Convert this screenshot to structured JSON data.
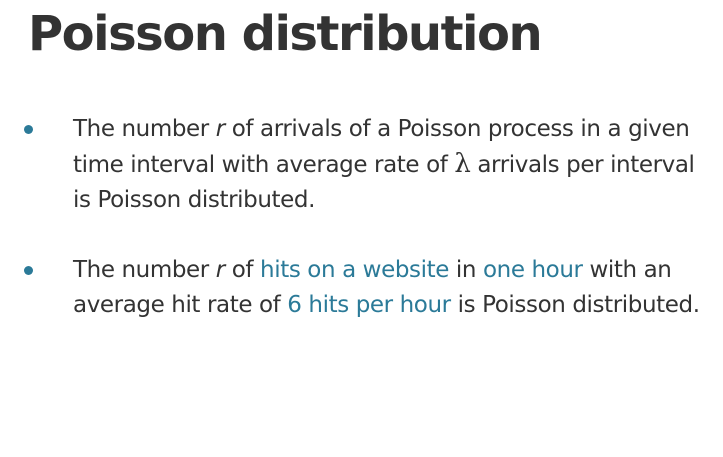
{
  "title": "Poisson distribution",
  "colors": {
    "accent": "#2b7a98",
    "text": "#333333"
  },
  "bullets": [
    {
      "p1": "The number ",
      "var": "r",
      "p2": " of arrivals of a Poisson process in a given time interval with average rate of ",
      "lambda": "λ",
      "p3": " arrivals per interval is Poisson distributed."
    },
    {
      "p1": "The number ",
      "var": "r",
      "p2": " of ",
      "h1": "hits on a website",
      "p3": " in ",
      "h2": "one hour",
      "p4": " with an average hit rate of ",
      "h3": "6 hits per hour",
      "p5": " is Poisson distributed."
    }
  ]
}
